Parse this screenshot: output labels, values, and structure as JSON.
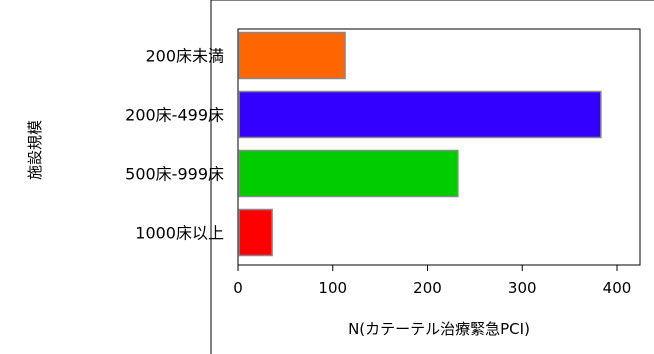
{
  "chart_data": {
    "type": "bar",
    "orientation": "horizontal",
    "categories": [
      "200床未満",
      "200床-499床",
      "500床-999床",
      "1000床以上"
    ],
    "values": [
      113,
      383,
      232,
      36
    ],
    "colors": [
      "#ff6600",
      "#3300ff",
      "#00cc00",
      "#ff0000"
    ],
    "xlabel": "N(カテーテル治療緊急PCI)",
    "ylabel": "施設規模",
    "xlim": [
      0,
      420
    ],
    "xticks": [
      0,
      100,
      200,
      300,
      400
    ],
    "grid": false
  }
}
